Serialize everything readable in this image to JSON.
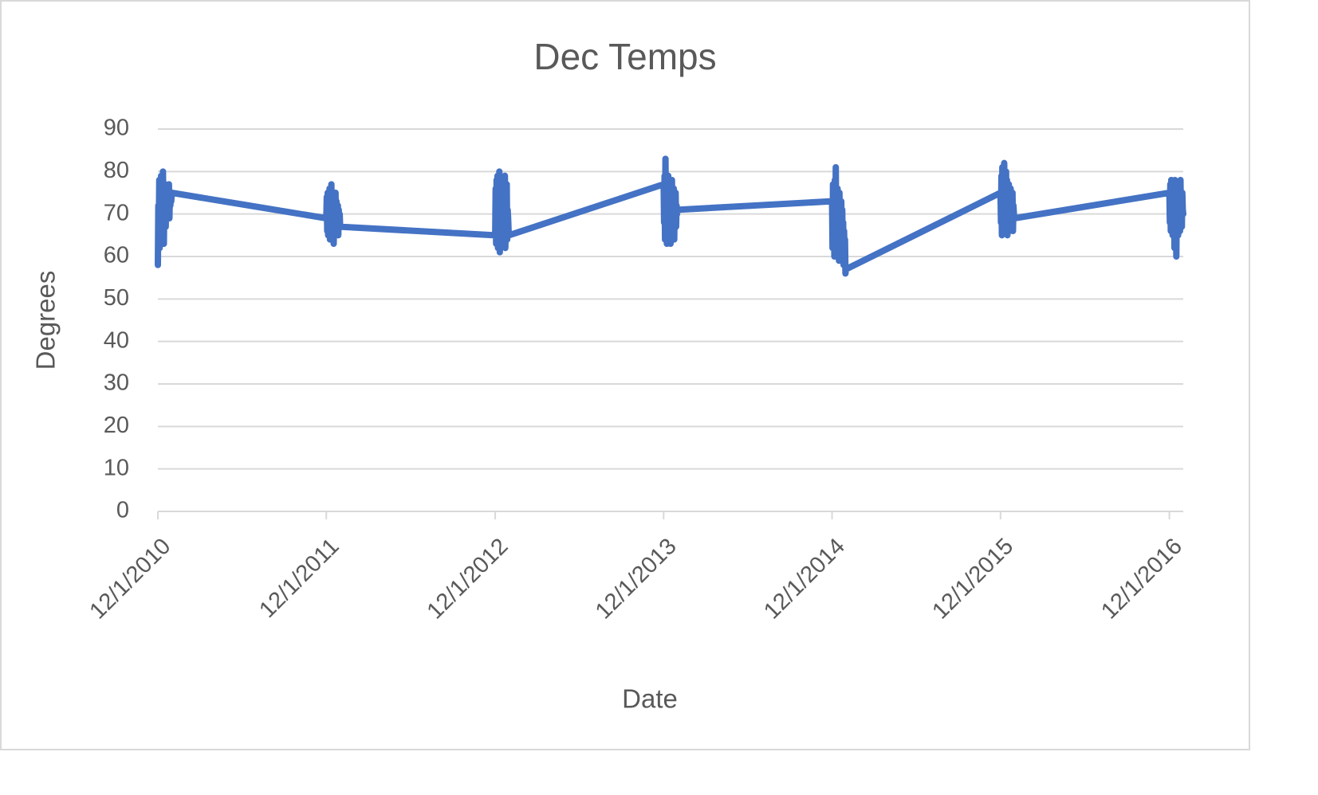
{
  "chart_data": {
    "type": "line",
    "title": "Dec Temps",
    "x_label": "Date",
    "y_label": "Degrees",
    "color": "#4472c4",
    "grid": true,
    "x": [
      "12/1/2010",
      "12/2/2010",
      "12/3/2010",
      "12/4/2010",
      "12/5/2010",
      "12/6/2010",
      "12/7/2010",
      "12/8/2010",
      "12/9/2010",
      "12/10/2010",
      "12/11/2010",
      "12/12/2010",
      "12/13/2010",
      "12/14/2010",
      "12/15/2010",
      "12/16/2010",
      "12/17/2010",
      "12/18/2010",
      "12/19/2010",
      "12/20/2010",
      "12/21/2010",
      "12/22/2010",
      "12/23/2010",
      "12/24/2010",
      "12/25/2010",
      "12/26/2010",
      "12/27/2010",
      "12/28/2010",
      "12/29/2010",
      "12/30/2010",
      "12/31/2010",
      "12/1/2011",
      "12/2/2011",
      "12/3/2011",
      "12/4/2011",
      "12/5/2011",
      "12/6/2011",
      "12/7/2011",
      "12/8/2011",
      "12/9/2011",
      "12/10/2011",
      "12/11/2011",
      "12/12/2011",
      "12/13/2011",
      "12/14/2011",
      "12/15/2011",
      "12/16/2011",
      "12/17/2011",
      "12/18/2011",
      "12/19/2011",
      "12/20/2011",
      "12/21/2011",
      "12/22/2011",
      "12/23/2011",
      "12/24/2011",
      "12/25/2011",
      "12/26/2011",
      "12/27/2011",
      "12/28/2011",
      "12/29/2011",
      "12/30/2011",
      "12/31/2011",
      "12/1/2012",
      "12/2/2012",
      "12/3/2012",
      "12/4/2012",
      "12/5/2012",
      "12/6/2012",
      "12/7/2012",
      "12/8/2012",
      "12/9/2012",
      "12/10/2012",
      "12/11/2012",
      "12/12/2012",
      "12/13/2012",
      "12/14/2012",
      "12/15/2012",
      "12/16/2012",
      "12/17/2012",
      "12/18/2012",
      "12/19/2012",
      "12/20/2012",
      "12/21/2012",
      "12/22/2012",
      "12/23/2012",
      "12/24/2012",
      "12/25/2012",
      "12/26/2012",
      "12/27/2012",
      "12/28/2012",
      "12/29/2012",
      "12/30/2012",
      "12/31/2012",
      "12/1/2013",
      "12/2/2013",
      "12/3/2013",
      "12/4/2013",
      "12/5/2013",
      "12/6/2013",
      "12/7/2013",
      "12/8/2013",
      "12/9/2013",
      "12/10/2013",
      "12/11/2013",
      "12/12/2013",
      "12/13/2013",
      "12/14/2013",
      "12/15/2013",
      "12/16/2013",
      "12/17/2013",
      "12/18/2013",
      "12/19/2013",
      "12/20/2013",
      "12/21/2013",
      "12/22/2013",
      "12/23/2013",
      "12/24/2013",
      "12/25/2013",
      "12/26/2013",
      "12/27/2013",
      "12/28/2013",
      "12/29/2013",
      "12/30/2013",
      "12/31/2013",
      "12/1/2014",
      "12/2/2014",
      "12/3/2014",
      "12/4/2014",
      "12/5/2014",
      "12/6/2014",
      "12/7/2014",
      "12/8/2014",
      "12/9/2014",
      "12/10/2014",
      "12/11/2014",
      "12/12/2014",
      "12/13/2014",
      "12/14/2014",
      "12/15/2014",
      "12/16/2014",
      "12/17/2014",
      "12/18/2014",
      "12/19/2014",
      "12/20/2014",
      "12/21/2014",
      "12/22/2014",
      "12/23/2014",
      "12/24/2014",
      "12/25/2014",
      "12/26/2014",
      "12/27/2014",
      "12/28/2014",
      "12/29/2014",
      "12/30/2014",
      "12/31/2014",
      "12/1/2015",
      "12/2/2015",
      "12/3/2015",
      "12/4/2015",
      "12/5/2015",
      "12/6/2015",
      "12/7/2015",
      "12/8/2015",
      "12/9/2015",
      "12/10/2015",
      "12/11/2015",
      "12/12/2015",
      "12/13/2015",
      "12/14/2015",
      "12/15/2015",
      "12/16/2015",
      "12/17/2015",
      "12/18/2015",
      "12/19/2015",
      "12/20/2015",
      "12/21/2015",
      "12/22/2015",
      "12/23/2015",
      "12/24/2015",
      "12/25/2015",
      "12/26/2015",
      "12/27/2015",
      "12/28/2015",
      "12/29/2015",
      "12/30/2015",
      "12/31/2015",
      "12/1/2016",
      "12/2/2016",
      "12/3/2016",
      "12/4/2016",
      "12/5/2016",
      "12/6/2016",
      "12/7/2016",
      "12/8/2016",
      "12/9/2016",
      "12/10/2016",
      "12/11/2016",
      "12/12/2016",
      "12/13/2016",
      "12/14/2016",
      "12/15/2016",
      "12/16/2016",
      "12/17/2016",
      "12/18/2016",
      "12/19/2016",
      "12/20/2016",
      "12/21/2016",
      "12/22/2016",
      "12/23/2016",
      "12/24/2016",
      "12/25/2016",
      "12/26/2016",
      "12/27/2016",
      "12/28/2016",
      "12/29/2016",
      "12/30/2016",
      "12/31/2016"
    ],
    "values": [
      58,
      72,
      65,
      78,
      62,
      74,
      68,
      79,
      64,
      71,
      66,
      80,
      70,
      63,
      75,
      69,
      77,
      67,
      73,
      72,
      76,
      70,
      74,
      71,
      77,
      69,
      75,
      72,
      74,
      73,
      75,
      69,
      74,
      66,
      75,
      65,
      73,
      68,
      76,
      64,
      72,
      67,
      77,
      65,
      71,
      69,
      74,
      63,
      70,
      72,
      68,
      75,
      66,
      73,
      70,
      67,
      72,
      65,
      71,
      68,
      70,
      67,
      65,
      76,
      63,
      78,
      64,
      79,
      62,
      75,
      66,
      80,
      61,
      77,
      65,
      74,
      68,
      78,
      63,
      72,
      70,
      76,
      64,
      79,
      62,
      73,
      67,
      77,
      64,
      71,
      69,
      66,
      65,
      77,
      68,
      79,
      64,
      83,
      66,
      78,
      63,
      76,
      70,
      79,
      65,
      74,
      68,
      77,
      63,
      75,
      69,
      78,
      66,
      72,
      70,
      76,
      64,
      73,
      68,
      75,
      67,
      72,
      70,
      71,
      73,
      62,
      77,
      65,
      75,
      60,
      78,
      63,
      81,
      66,
      74,
      61,
      76,
      64,
      72,
      59,
      75,
      62,
      70,
      65,
      73,
      60,
      71,
      63,
      68,
      58,
      66,
      61,
      64,
      56,
      57,
      75,
      68,
      79,
      65,
      81,
      70,
      77,
      66,
      82,
      71,
      76,
      67,
      80,
      69,
      78,
      65,
      75,
      70,
      77,
      66,
      74,
      68,
      76,
      67,
      73,
      69,
      75,
      66,
      72,
      70,
      69,
      75,
      68,
      77,
      66,
      78,
      70,
      76,
      65,
      77,
      69,
      74,
      62,
      78,
      67,
      75,
      60,
      73,
      68,
      77,
      65,
      76,
      70,
      74,
      66,
      78,
      69,
      72,
      67,
      75,
      71,
      70
    ],
    "xlim": [
      "12/1/2010",
      "12/31/2016"
    ],
    "xticks": [
      "12/1/2010",
      "12/1/2011",
      "12/1/2012",
      "12/1/2013",
      "12/1/2014",
      "12/1/2015",
      "12/1/2016"
    ],
    "ylim": [
      0,
      90
    ],
    "yticks": [
      0,
      10,
      20,
      30,
      40,
      50,
      60,
      70,
      80,
      90
    ]
  }
}
